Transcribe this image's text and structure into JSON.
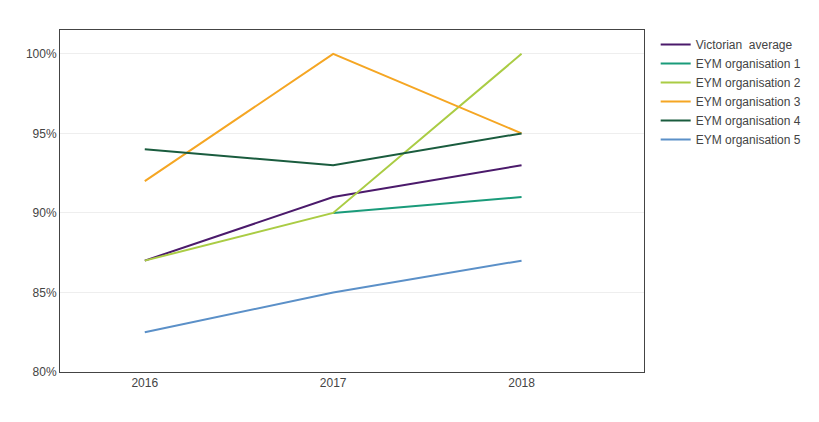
{
  "chart_data": {
    "type": "line",
    "x": [
      2016,
      2017,
      2018
    ],
    "series": [
      {
        "name": "Victorian  average",
        "color": "#4B1A6B",
        "values": [
          87.0,
          91.0,
          93.0
        ]
      },
      {
        "name": "EYM organisation 1",
        "color": "#1A9B7A",
        "values": [
          null,
          90.0,
          91.0
        ]
      },
      {
        "name": "EYM organisation 2",
        "color": "#AACC44",
        "values": [
          87.0,
          90.0,
          100.0
        ]
      },
      {
        "name": "EYM organisation 3",
        "color": "#F5A623",
        "values": [
          92.0,
          100.0,
          95.0
        ]
      },
      {
        "name": "EYM organisation 4",
        "color": "#1A5C3E",
        "values": [
          94.0,
          93.0,
          95.0
        ]
      },
      {
        "name": "EYM organisation 5",
        "color": "#5B90C8",
        "values": [
          82.5,
          85.0,
          87.0
        ]
      }
    ],
    "xlim": [
      2015.55,
      2018.65
    ],
    "xticks": [
      2016,
      2017,
      2018
    ],
    "ylim": [
      80,
      101.5
    ],
    "yticks": [
      {
        "value": 80,
        "label": "80%"
      },
      {
        "value": 85,
        "label": "85%"
      },
      {
        "value": 90,
        "label": "90%"
      },
      {
        "value": 95,
        "label": "95%"
      },
      {
        "value": 100,
        "label": "100%"
      }
    ],
    "grid": "y",
    "legend": "right"
  }
}
